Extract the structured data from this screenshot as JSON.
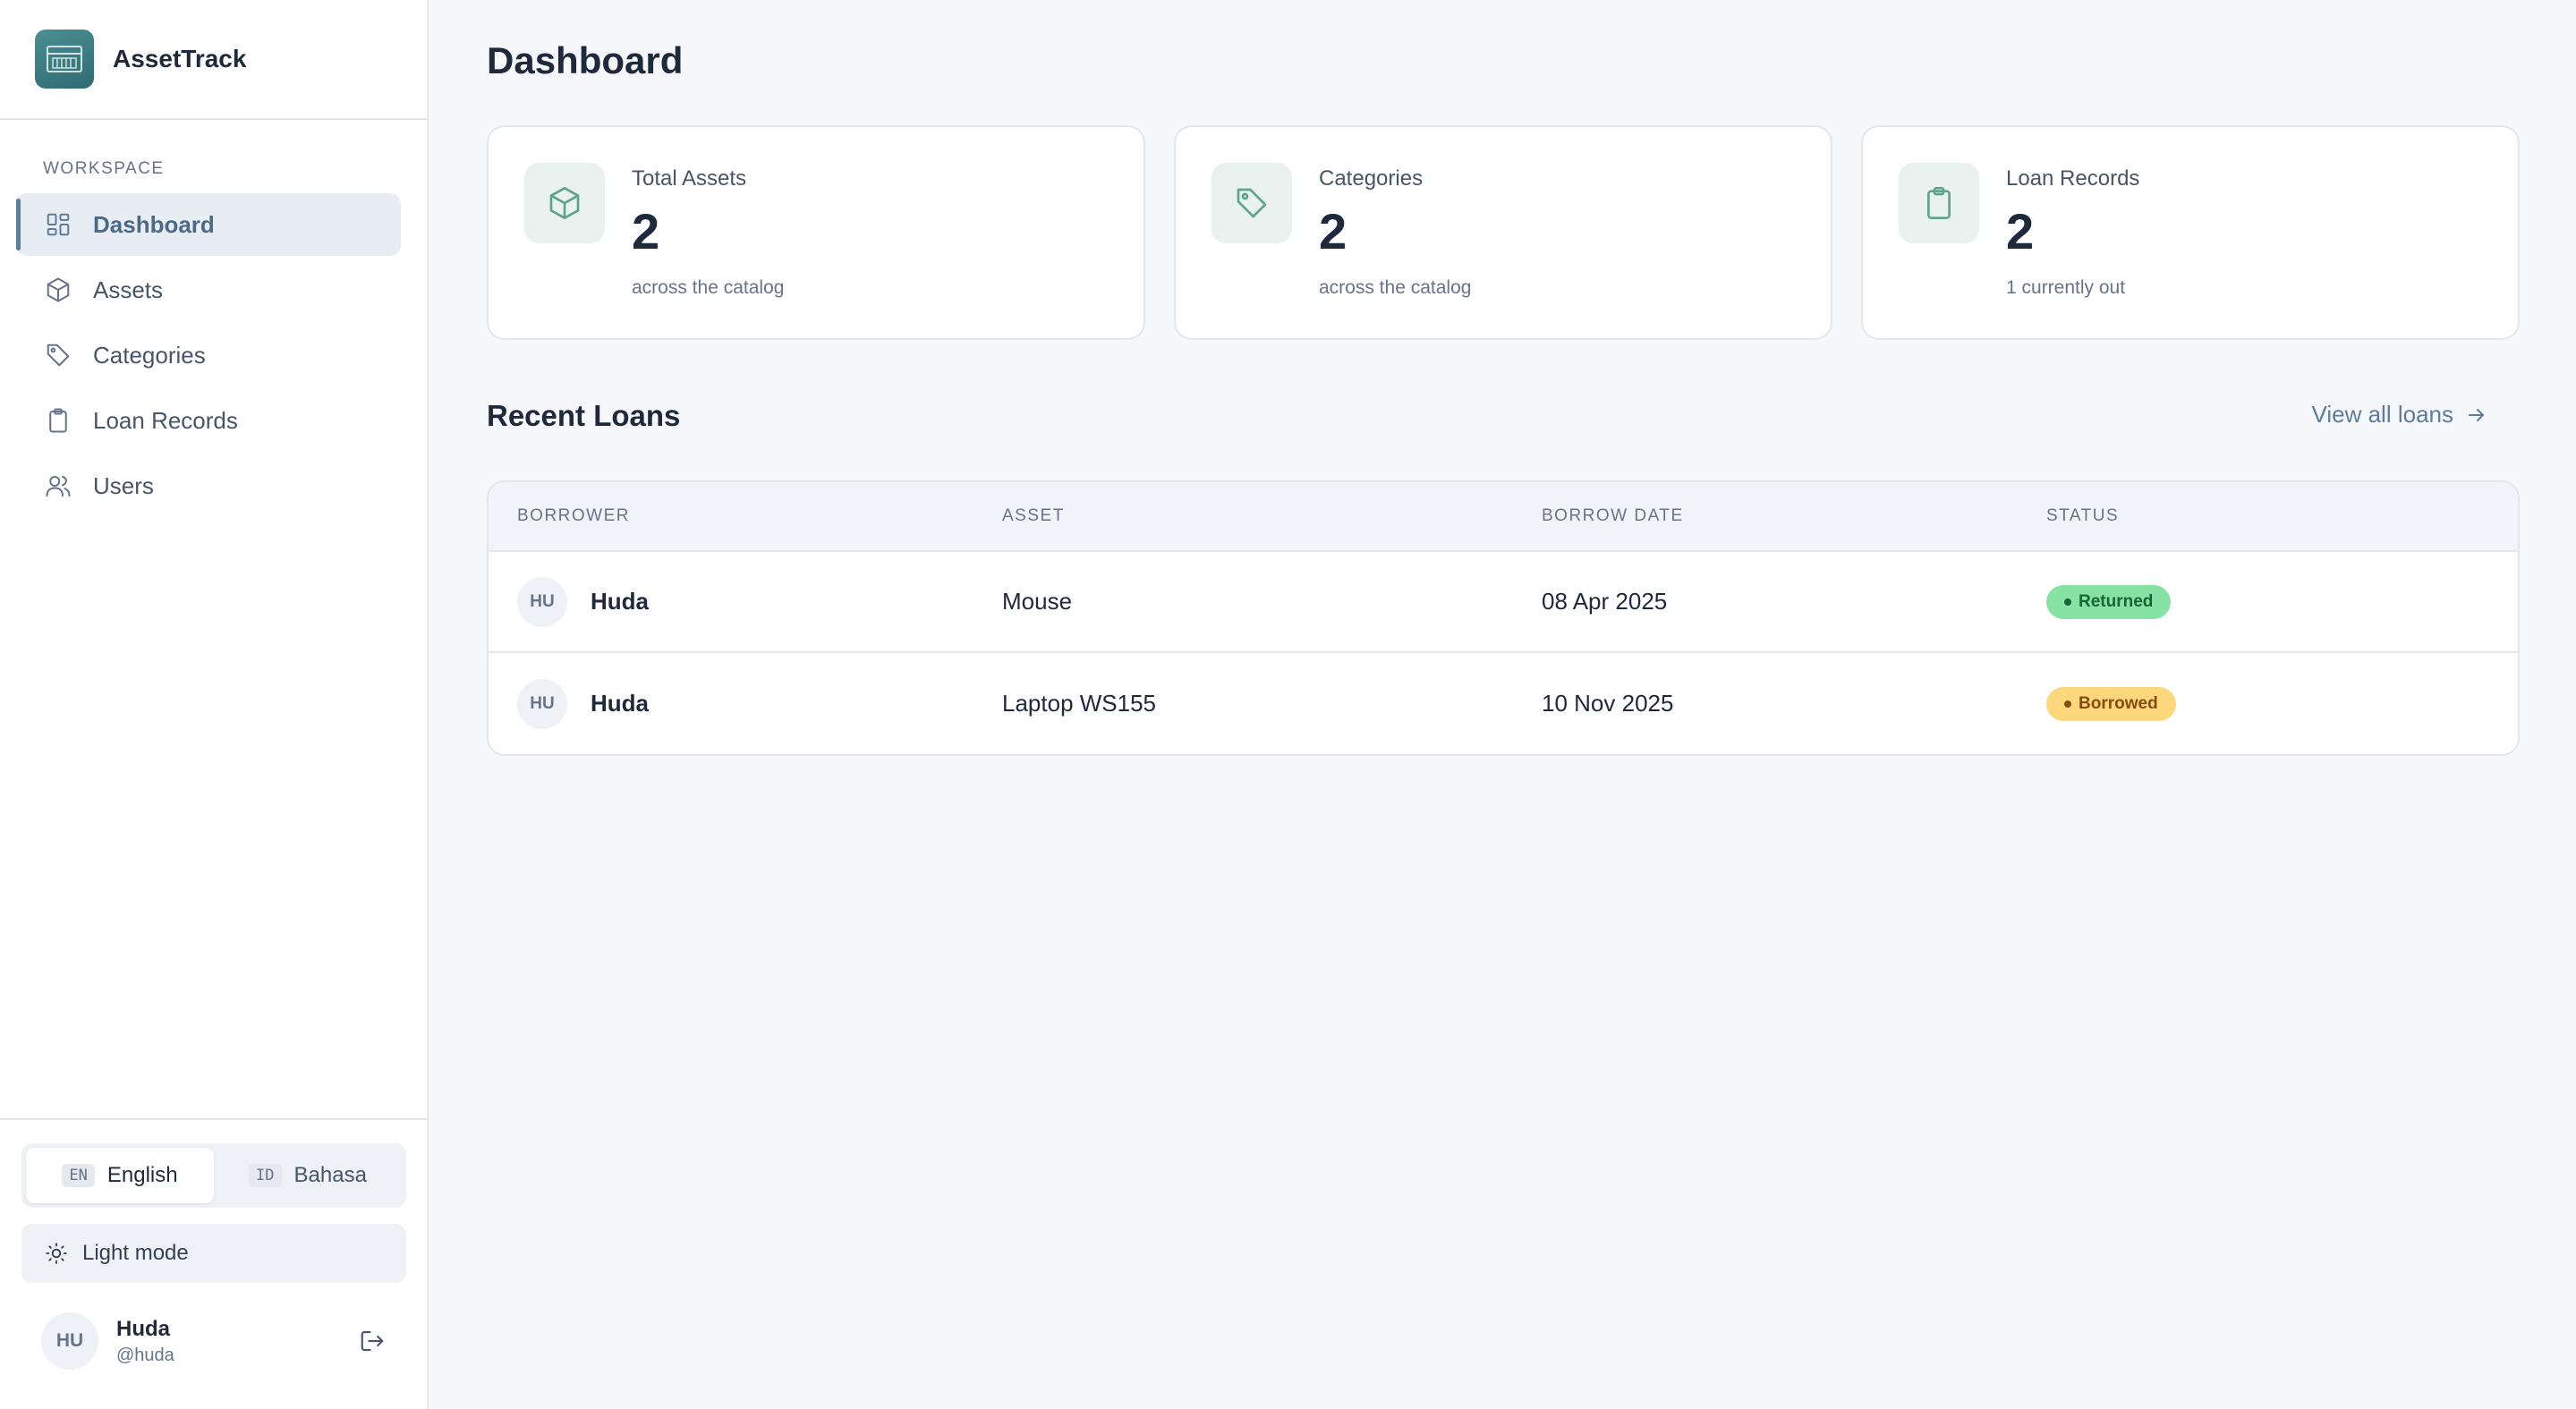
{
  "app": {
    "name": "AssetTrack"
  },
  "sidebar": {
    "section_label": "WORKSPACE",
    "items": [
      {
        "label": "Dashboard",
        "icon": "dashboard-icon",
        "active": true
      },
      {
        "label": "Assets",
        "icon": "box-icon"
      },
      {
        "label": "Categories",
        "icon": "tag-icon"
      },
      {
        "label": "Loan Records",
        "icon": "clipboard-icon"
      },
      {
        "label": "Users",
        "icon": "users-icon"
      }
    ],
    "languages": [
      {
        "code": "EN",
        "label": "English",
        "active": true
      },
      {
        "code": "ID",
        "label": "Bahasa"
      }
    ],
    "theme_label": "Light mode",
    "user": {
      "initials": "HU",
      "name": "Huda",
      "handle": "@huda"
    }
  },
  "main": {
    "title": "Dashboard",
    "stats": [
      {
        "label": "Total Assets",
        "value": "2",
        "sub": "across the catalog",
        "icon": "box-icon"
      },
      {
        "label": "Categories",
        "value": "2",
        "sub": "across the catalog",
        "icon": "tag-icon"
      },
      {
        "label": "Loan Records",
        "value": "2",
        "sub": "1 currently out",
        "icon": "clipboard-icon"
      }
    ],
    "recent_loans": {
      "title": "Recent Loans",
      "view_all": "View all loans",
      "columns": [
        "BORROWER",
        "ASSET",
        "BORROW DATE",
        "STATUS"
      ],
      "rows": [
        {
          "initials": "HU",
          "borrower": "Huda",
          "asset": "Mouse",
          "date": "08 Apr 2025",
          "status": "Returned"
        },
        {
          "initials": "HU",
          "borrower": "Huda",
          "asset": "Laptop WS155",
          "date": "10 Nov 2025",
          "status": "Borrowed"
        }
      ]
    }
  },
  "colors": {
    "accent": "#5b7c9c",
    "stat_icon": "#5fa38c",
    "returned_bg": "#86e3a3",
    "borrowed_bg": "#fcd77c"
  }
}
